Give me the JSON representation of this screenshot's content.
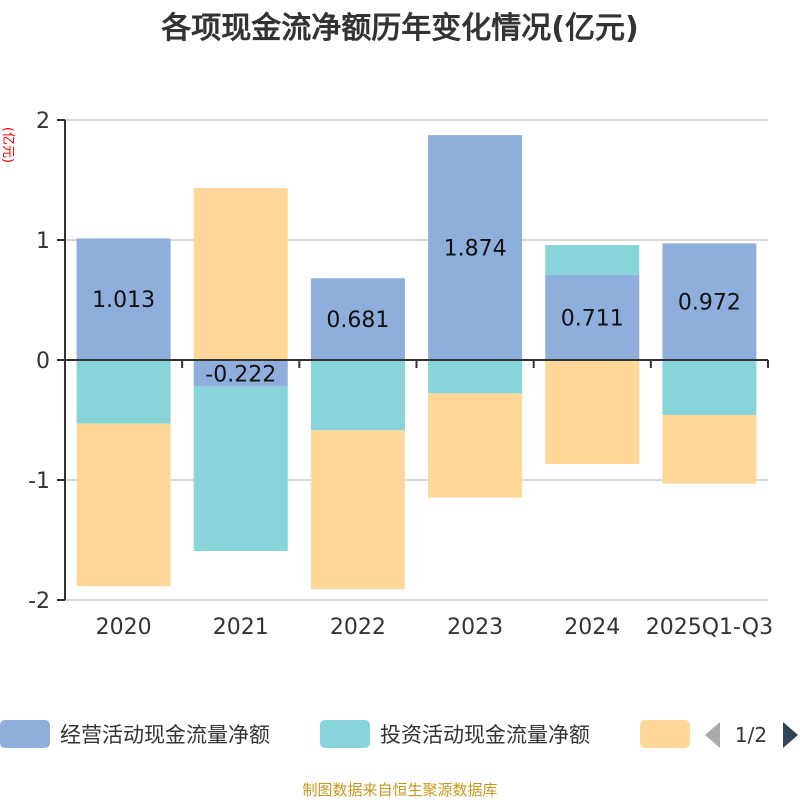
{
  "chart_data": {
    "type": "bar",
    "stacked": true,
    "title": "各项现金流净额历年变化情况(亿元)",
    "ylabel": "(亿元)",
    "ylim": [
      -2,
      2
    ],
    "yticks": [
      "2",
      "1",
      "0",
      "-1",
      "-2"
    ],
    "grid": true,
    "legend_position": "bottom",
    "categories": [
      "2020",
      "2021",
      "2022",
      "2023",
      "2024",
      "2025Q1-Q3"
    ],
    "series": [
      {
        "name": "经营活动现金流量净额",
        "color": "#8eaedb",
        "values": [
          1.013,
          -0.222,
          0.681,
          1.874,
          0.711,
          0.972
        ],
        "labels": [
          "1.013",
          "-0.222",
          "0.681",
          "1.874",
          "0.711",
          "0.972"
        ]
      },
      {
        "name": "投资活动现金流量净额",
        "color": "#87d5d8",
        "values": [
          -0.53,
          -1.37,
          -0.586,
          -0.278,
          0.247,
          -0.458
        ]
      },
      {
        "name": "",
        "color": "#ffd899",
        "values": [
          -1.355,
          1.433,
          -1.325,
          -0.869,
          -0.867,
          -0.573
        ]
      }
    ]
  },
  "legend": {
    "page": "1/2"
  },
  "footer": "制图数据来自恒生聚源数据库"
}
